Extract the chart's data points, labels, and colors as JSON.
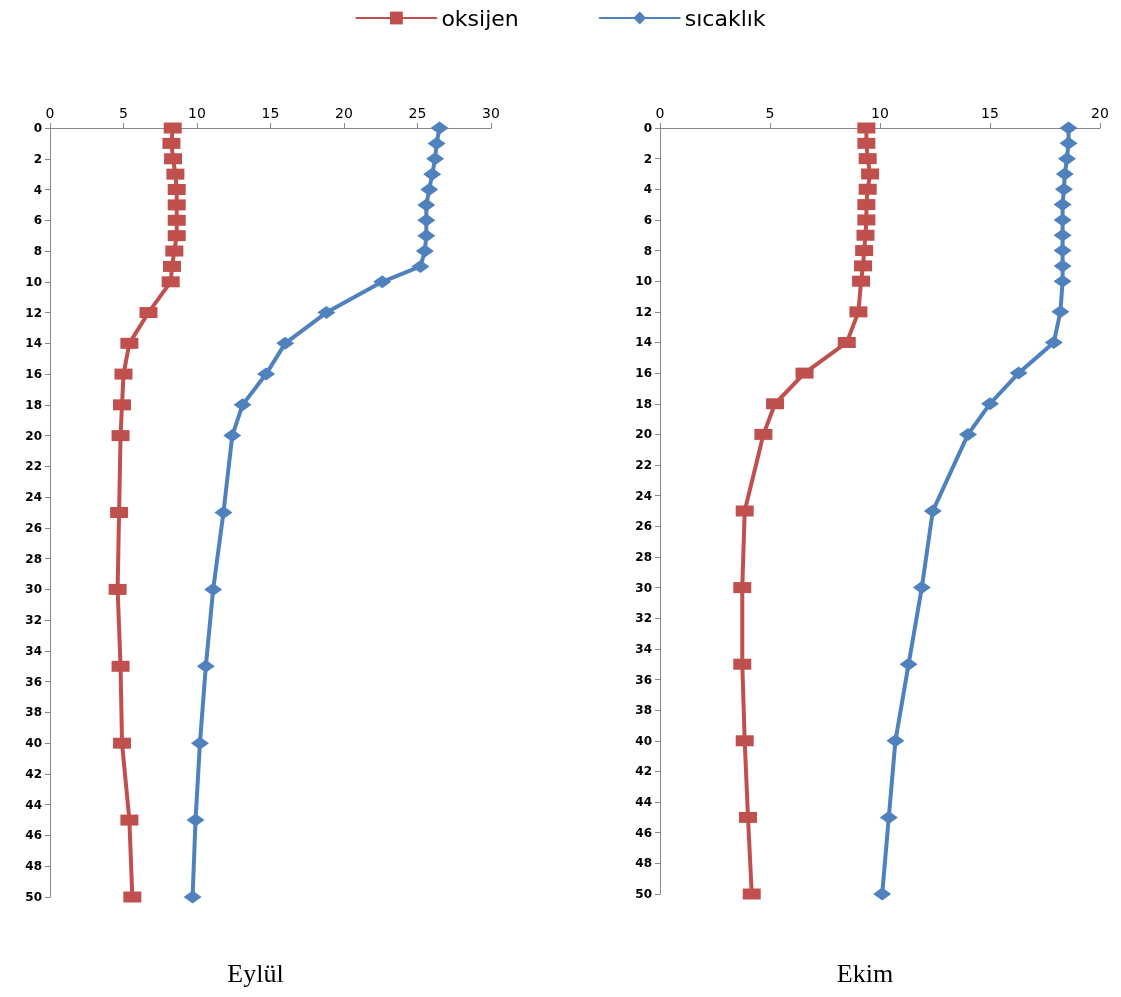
{
  "chart_data": [
    {
      "type": "line",
      "title": "Eylül",
      "legend": "top",
      "grid": false,
      "line_style": "solid",
      "xlim": [
        0,
        30
      ],
      "xticks": [
        0,
        5,
        10,
        15,
        20,
        25,
        30
      ],
      "ylim": [
        50,
        0
      ],
      "yticks": [
        0,
        2,
        4,
        6,
        8,
        10,
        12,
        14,
        16,
        18,
        20,
        22,
        24,
        26,
        28,
        30,
        32,
        34,
        36,
        38,
        40,
        42,
        44,
        46,
        48,
        50
      ],
      "series": [
        {
          "name": "oksijen",
          "color": "#c0504d",
          "marker": "square",
          "x": [
            8.35,
            8.26,
            8.37,
            8.53,
            8.62,
            8.62,
            8.62,
            8.62,
            8.46,
            8.3,
            8.21,
            6.7,
            5.4,
            5.0,
            4.9,
            4.8,
            4.7,
            4.6,
            4.8,
            4.9,
            5.4,
            5.6
          ],
          "values": [
            0,
            1,
            2,
            3,
            4,
            5,
            6,
            7,
            8,
            9,
            10,
            12,
            14,
            16,
            18,
            20,
            25,
            30,
            35,
            40,
            45,
            50
          ]
        },
        {
          "name": "sıcaklık",
          "color": "#4f81bd",
          "marker": "diamond",
          "x": [
            26.5,
            26.3,
            26.2,
            26.0,
            25.8,
            25.6,
            25.6,
            25.6,
            25.5,
            25.2,
            22.6,
            18.8,
            16.0,
            14.7,
            13.1,
            12.4,
            11.8,
            11.1,
            10.6,
            10.2,
            9.9,
            9.7
          ],
          "values": [
            0,
            1,
            2,
            3,
            4,
            5,
            6,
            7,
            8,
            9,
            10,
            12,
            14,
            16,
            18,
            20,
            25,
            30,
            35,
            40,
            45,
            50
          ]
        }
      ]
    },
    {
      "type": "line",
      "title": "Ekim",
      "grid": false,
      "line_style": "solid",
      "xlim": [
        0,
        20
      ],
      "xticks": [
        0,
        5,
        10,
        15,
        20
      ],
      "ylim": [
        50,
        0
      ],
      "yticks": [
        0,
        2,
        4,
        6,
        8,
        10,
        12,
        14,
        16,
        18,
        20,
        22,
        24,
        26,
        28,
        30,
        32,
        34,
        36,
        38,
        40,
        42,
        44,
        46,
        48,
        50
      ],
      "series": [
        {
          "color": "#c0504d",
          "marker": "square",
          "x": [
            9.38,
            9.38,
            9.44,
            9.55,
            9.44,
            9.38,
            9.38,
            9.34,
            9.28,
            9.23,
            9.14,
            9.02,
            8.49,
            6.57,
            5.23,
            4.7,
            3.85,
            3.74,
            3.74,
            3.85,
            4.0,
            4.17
          ],
          "values": [
            0,
            1,
            2,
            3,
            4,
            5,
            6,
            7,
            8,
            9,
            10,
            12,
            14,
            16,
            18,
            20,
            25,
            30,
            35,
            40,
            45,
            50
          ]
        },
        {
          "color": "#4f81bd",
          "marker": "diamond",
          "x": [
            18.57,
            18.57,
            18.5,
            18.4,
            18.36,
            18.3,
            18.3,
            18.3,
            18.3,
            18.3,
            18.3,
            18.2,
            17.9,
            16.3,
            15.0,
            14.0,
            12.4,
            11.9,
            11.3,
            10.7,
            10.4,
            10.1
          ],
          "values": [
            0,
            1,
            2,
            3,
            4,
            5,
            6,
            7,
            8,
            9,
            10,
            12,
            14,
            16,
            18,
            20,
            25,
            30,
            35,
            40,
            45,
            50
          ]
        }
      ]
    }
  ]
}
